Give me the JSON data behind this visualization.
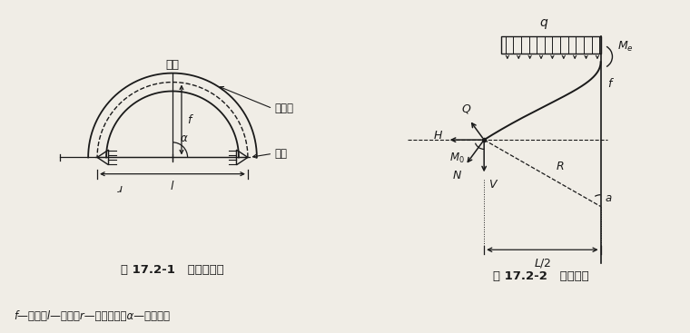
{
  "fig_width": 7.6,
  "fig_height": 3.67,
  "bg_color": "#f0ede6",
  "line_color": "#1a1a1a",
  "fig1_caption": "图 17.2-1   圆弧无铰拱",
  "fig2_caption": "图 17.2-2   拱身内力",
  "bottom_note": "f—矢高；l—跨度；r—圆弧半径；α—半弧心角",
  "left_labels": [
    "拱顶",
    "拱轴线",
    "拱脚"
  ],
  "right_labels": [
    "Q",
    "H",
    "M0",
    "N",
    "V",
    "R",
    "f",
    "q",
    "Me",
    "L/2",
    "a"
  ]
}
